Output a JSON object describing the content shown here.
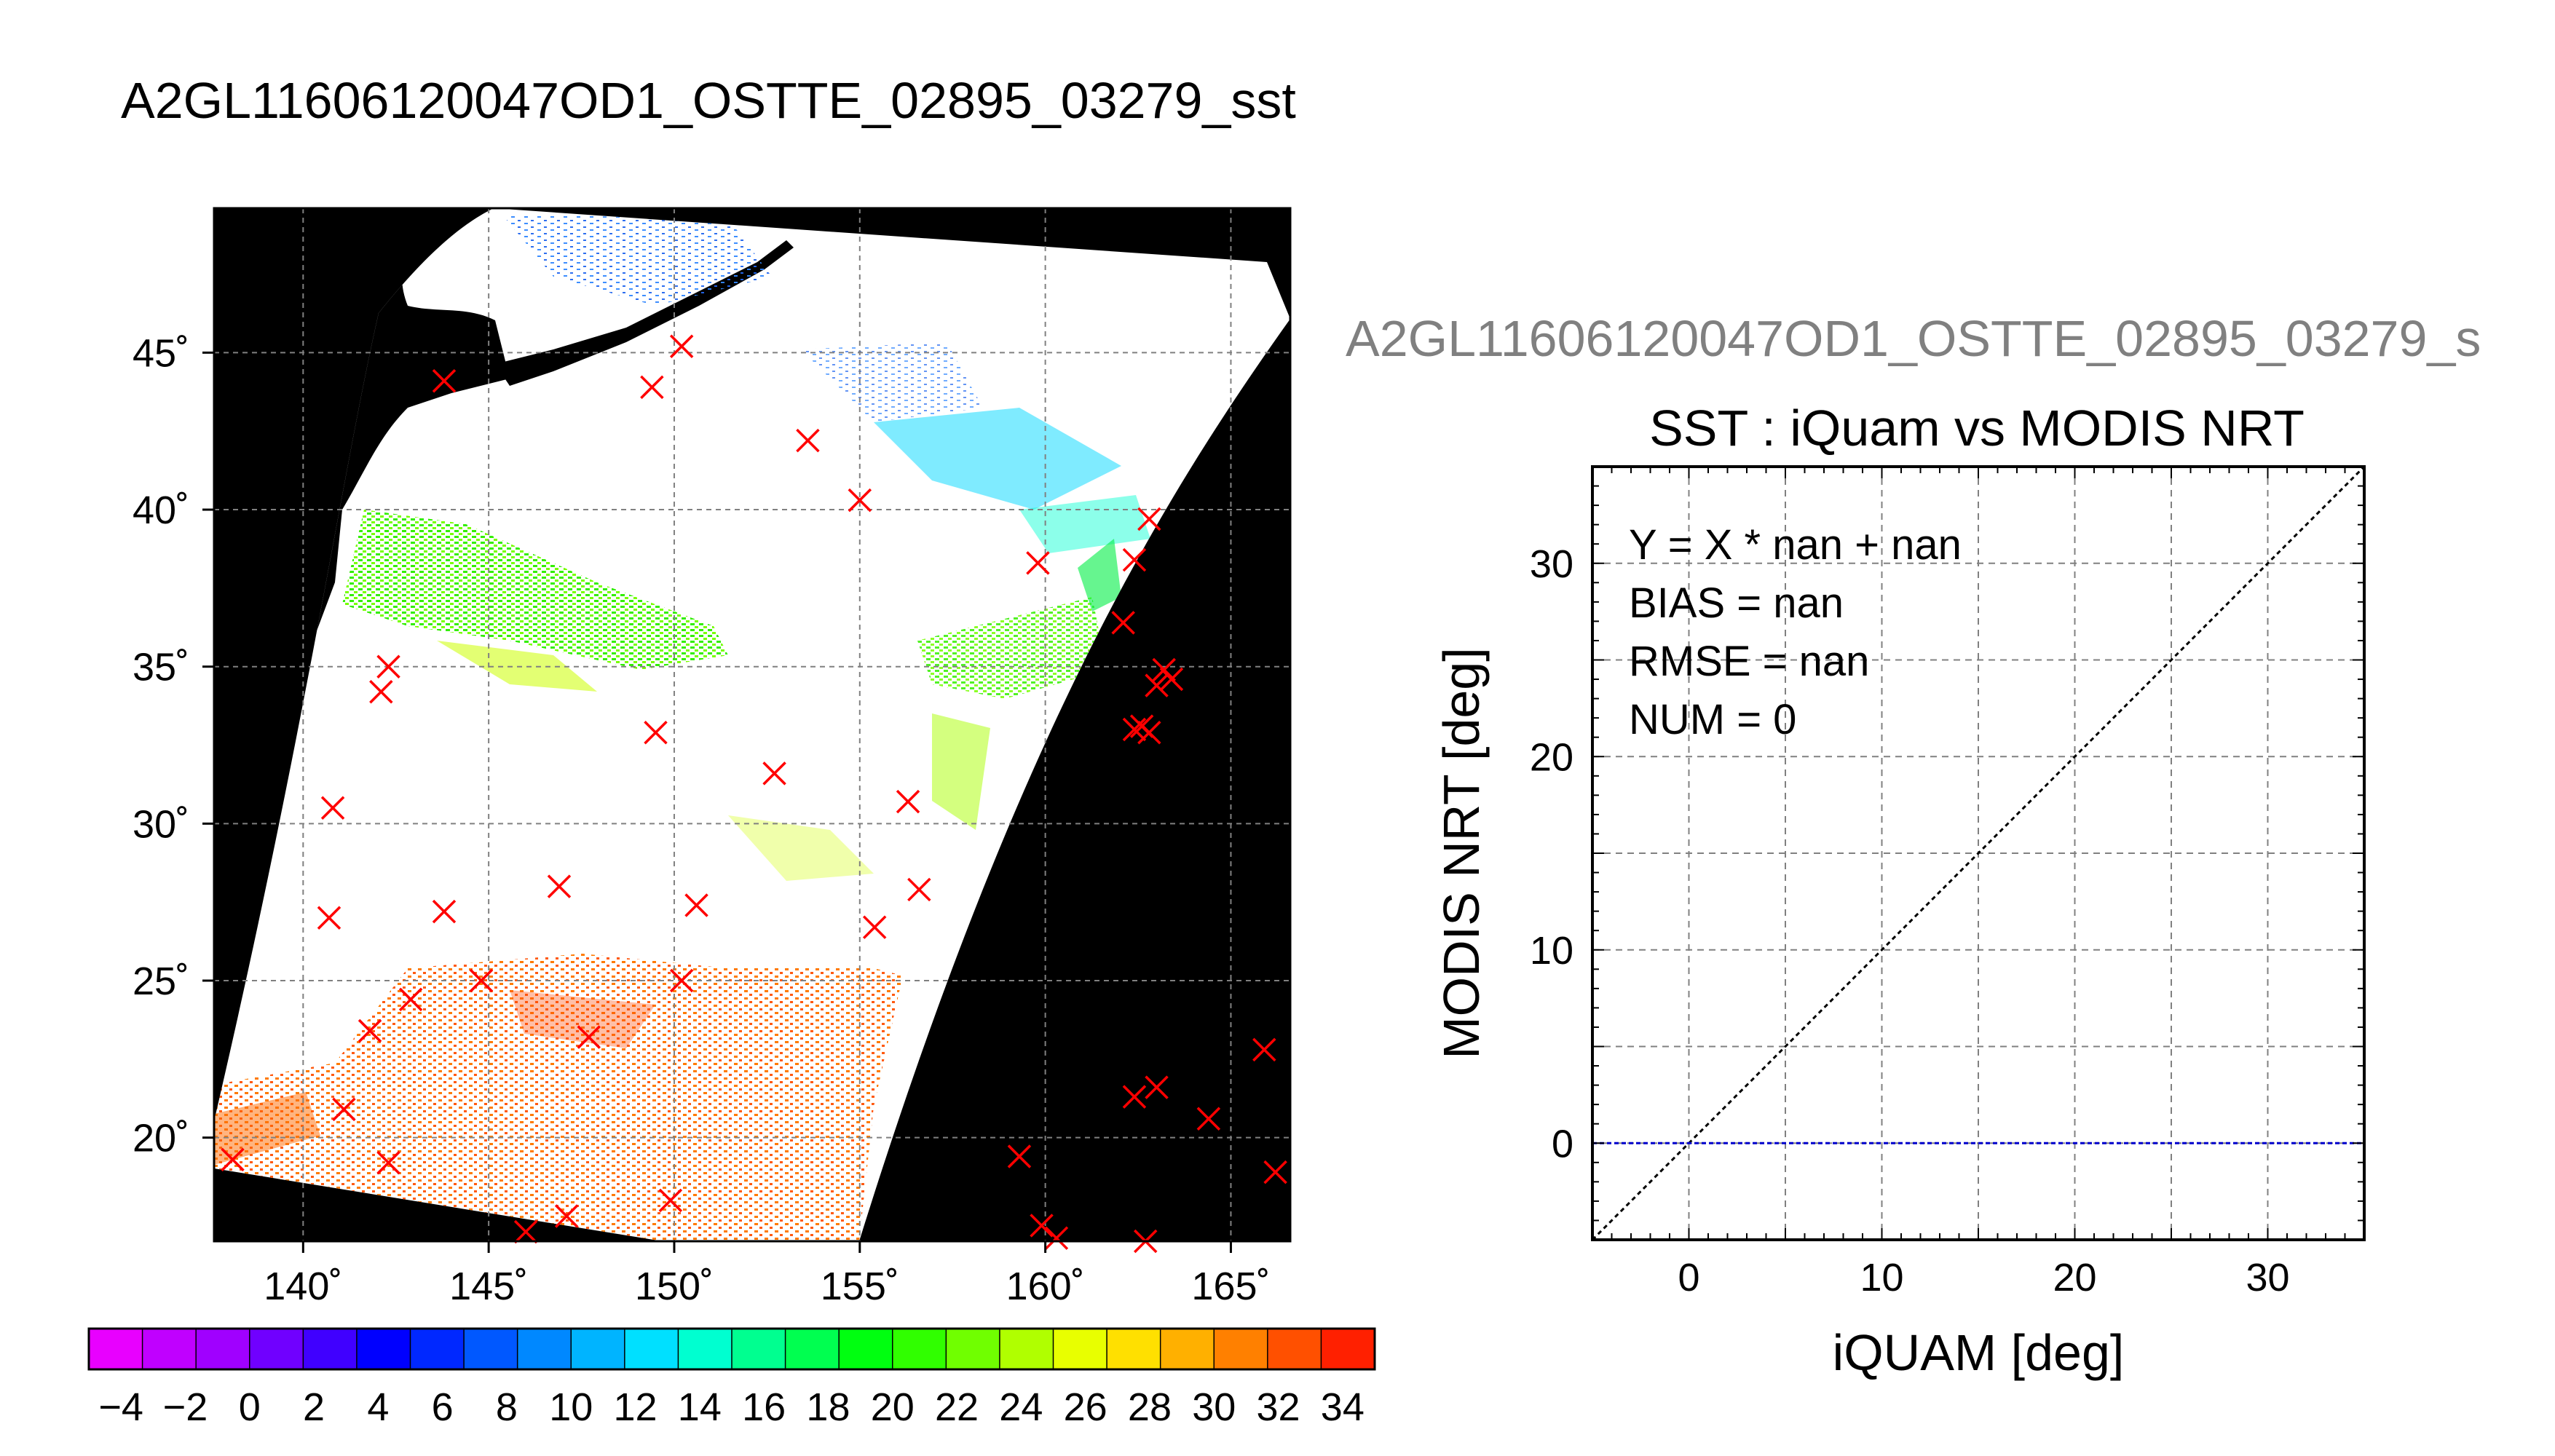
{
  "main_title": "A2GL11606120047OD1_OSTTE_02895_03279_sst",
  "scatter_title_gray": "A2GL11606120047OD1_OSTTE_02895_03279_s",
  "colors": {
    "land": "#000000",
    "grid": "#808080",
    "marker": "#ff0000",
    "zero_line": "#0000cc",
    "title_gray": "#808080"
  },
  "chart_data": [
    {
      "type": "scatter",
      "title": "",
      "xlabel": "",
      "ylabel": "",
      "xlim": [
        137.6,
        166.6
      ],
      "ylim": [
        16.7,
        49.6
      ],
      "grid": true,
      "x_ticks": [
        140,
        145,
        150,
        155,
        160,
        165
      ],
      "y_ticks": [
        20,
        25,
        30,
        35,
        40,
        45
      ],
      "x_tick_labels": [
        "140˚",
        "145˚",
        "150˚",
        "155˚",
        "160˚",
        "165˚"
      ],
      "y_tick_labels": [
        "20˚",
        "25˚",
        "30˚",
        "35˚",
        "40˚",
        "45˚"
      ],
      "series": [
        {
          "points": [
            [
              143.8,
              44.1
            ],
            [
              149.4,
              43.9
            ],
            [
              150.2,
              45.2
            ],
            [
              153.6,
              42.2
            ],
            [
              155.0,
              40.3
            ],
            [
              159.8,
              38.3
            ],
            [
              162.4,
              38.4
            ],
            [
              162.8,
              39.7
            ],
            [
              162.1,
              36.4
            ],
            [
              142.3,
              35.0
            ],
            [
              142.1,
              34.2
            ],
            [
              149.5,
              32.9
            ],
            [
              152.7,
              31.6
            ],
            [
              156.3,
              30.7
            ],
            [
              162.4,
              33.0
            ],
            [
              162.8,
              32.9
            ],
            [
              162.6,
              33.1
            ],
            [
              163.2,
              34.9
            ],
            [
              163.4,
              34.6
            ],
            [
              163.0,
              34.4
            ],
            [
              140.8,
              30.5
            ],
            [
              140.7,
              27.0
            ],
            [
              143.8,
              27.2
            ],
            [
              146.9,
              28.0
            ],
            [
              150.6,
              27.4
            ],
            [
              155.4,
              26.7
            ],
            [
              156.6,
              27.9
            ],
            [
              142.9,
              24.4
            ],
            [
              141.8,
              23.4
            ],
            [
              144.8,
              25.0
            ],
            [
              147.7,
              23.2
            ],
            [
              150.2,
              25.0
            ],
            [
              141.1,
              20.9
            ],
            [
              142.3,
              19.2
            ],
            [
              138.1,
              19.3
            ],
            [
              146.0,
              17.0
            ],
            [
              147.1,
              17.5
            ],
            [
              149.9,
              18.0
            ],
            [
              159.3,
              19.4
            ],
            [
              159.9,
              17.2
            ],
            [
              160.3,
              16.8
            ],
            [
              162.7,
              16.7
            ],
            [
              162.4,
              21.3
            ],
            [
              163.0,
              21.6
            ],
            [
              164.4,
              20.6
            ],
            [
              165.9,
              22.8
            ],
            [
              166.2,
              18.9
            ]
          ]
        }
      ]
    },
    {
      "type": "heatmap",
      "title": "",
      "range": [
        -5,
        35
      ],
      "tick_labels": [
        "−4",
        "−2",
        "0",
        "2",
        "4",
        "6",
        "8",
        "10",
        "12",
        "14",
        "16",
        "18",
        "20",
        "22",
        "24",
        "26",
        "28",
        "30",
        "32",
        "34"
      ],
      "colors": [
        "#e800ff",
        "#c000ff",
        "#a000ff",
        "#7000ff",
        "#4000ff",
        "#0000ff",
        "#0028ff",
        "#0058ff",
        "#0088ff",
        "#00b4ff",
        "#00e0ff",
        "#00ffd0",
        "#00ff90",
        "#00ff50",
        "#00ff10",
        "#30ff00",
        "#70ff00",
        "#b0ff00",
        "#e8ff00",
        "#ffe000",
        "#ffb000",
        "#ff8000",
        "#ff5000",
        "#ff2000"
      ]
    },
    {
      "type": "line",
      "title": "SST : iQuam vs MODIS NRT",
      "xlabel": "iQUAM [deg]",
      "ylabel": "MODIS NRT [deg]",
      "xlim": [
        -5,
        35
      ],
      "ylim": [
        -5,
        35
      ],
      "grid": true,
      "x_ticks": [
        0,
        10,
        20,
        30
      ],
      "y_ticks": [
        0,
        10,
        20,
        30
      ],
      "annotations": [
        "Y = X * nan + nan",
        "BIAS = nan",
        "RMSE = nan",
        "NUM = 0"
      ],
      "series": [
        {
          "x": [
            -5,
            35
          ],
          "y": [
            -5,
            35
          ]
        },
        {
          "x": [
            -5,
            35
          ],
          "y": [
            0,
            0
          ]
        }
      ]
    }
  ]
}
